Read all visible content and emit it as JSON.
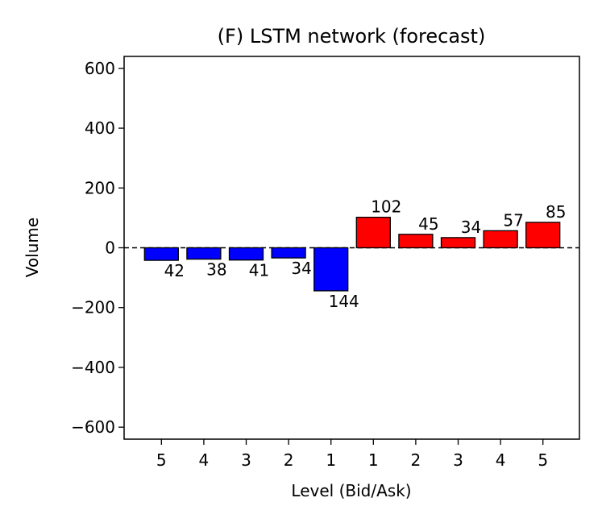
{
  "chart_data": {
    "type": "bar",
    "title": "(F) LSTM network (forecast)",
    "xlabel": "Level (Bid/Ask)",
    "ylabel": "Volume",
    "ylim": [
      -640,
      640
    ],
    "yticks": [
      -600,
      -400,
      -200,
      0,
      200,
      400,
      600
    ],
    "ytick_labels": [
      "−600",
      "−400",
      "−200",
      "0",
      "200",
      "400",
      "600"
    ],
    "categories": [
      "5",
      "4",
      "3",
      "2",
      "1",
      "1",
      "2",
      "3",
      "4",
      "5"
    ],
    "sides": [
      "bid",
      "bid",
      "bid",
      "bid",
      "bid",
      "ask",
      "ask",
      "ask",
      "ask",
      "ask"
    ],
    "values": [
      -42,
      -38,
      -41,
      -34,
      -144,
      102,
      45,
      34,
      57,
      85
    ],
    "data_labels": [
      "42",
      "38",
      "41",
      "34",
      "144",
      "102",
      "45",
      "34",
      "57",
      "85"
    ],
    "colors": {
      "bid": "#0000ff",
      "ask": "#ff0000",
      "edge": "#000000"
    },
    "zero_line": "dashed",
    "grid": false,
    "legend": "none"
  }
}
